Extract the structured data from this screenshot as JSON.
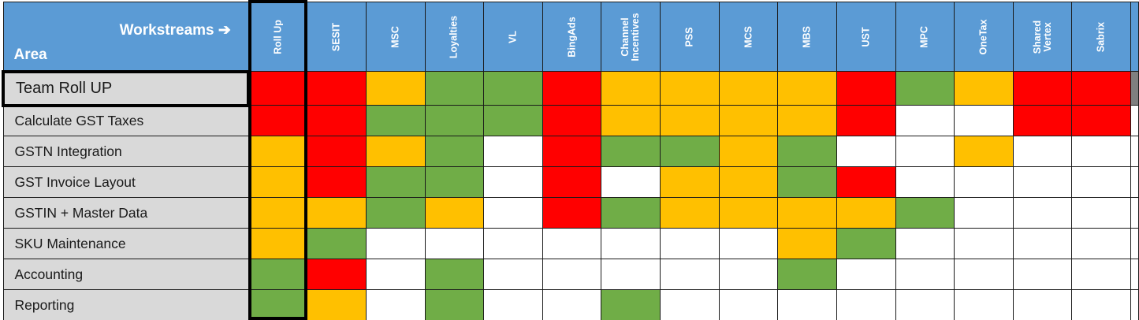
{
  "header": {
    "workstreams_label": "Workstreams",
    "arrow_glyph": "➔",
    "area_label": "Area"
  },
  "columns": [
    "Roll Up",
    "SESIT",
    "MSC",
    "Loyalties",
    "VL",
    "BingAds",
    "Channel\nIncentives",
    "PSS",
    "MCS",
    "MBS",
    "UST",
    "MPC",
    "OneTax",
    "Shared\nVertex",
    "Sabrix"
  ],
  "status_colors": {
    "red": "#ff0000",
    "amber": "#ffc000",
    "green": "#70ad47",
    "none": "#ffffff"
  },
  "rows": [
    {
      "area": "Team Roll UP",
      "statuses": [
        "red",
        "red",
        "amber",
        "green",
        "green",
        "red",
        "amber",
        "amber",
        "amber",
        "amber",
        "red",
        "green",
        "amber",
        "red",
        "red"
      ]
    },
    {
      "area": "Calculate GST Taxes",
      "statuses": [
        "red",
        "red",
        "green",
        "green",
        "green",
        "red",
        "amber",
        "amber",
        "amber",
        "amber",
        "red",
        "none",
        "none",
        "red",
        "red"
      ]
    },
    {
      "area": "GSTN Integration",
      "statuses": [
        "amber",
        "red",
        "amber",
        "green",
        "none",
        "red",
        "green",
        "green",
        "amber",
        "green",
        "none",
        "none",
        "amber",
        "none",
        "none"
      ]
    },
    {
      "area": "GST Invoice Layout",
      "statuses": [
        "amber",
        "red",
        "green",
        "green",
        "none",
        "red",
        "none",
        "amber",
        "amber",
        "green",
        "red",
        "none",
        "none",
        "none",
        "none"
      ]
    },
    {
      "area": "GSTIN + Master Data",
      "statuses": [
        "amber",
        "amber",
        "green",
        "amber",
        "none",
        "red",
        "green",
        "amber",
        "amber",
        "amber",
        "amber",
        "green",
        "none",
        "none",
        "none"
      ]
    },
    {
      "area": "SKU Maintenance",
      "statuses": [
        "amber",
        "green",
        "none",
        "none",
        "none",
        "none",
        "none",
        "none",
        "none",
        "amber",
        "green",
        "none",
        "none",
        "none",
        "none"
      ]
    },
    {
      "area": "Accounting",
      "statuses": [
        "green",
        "red",
        "none",
        "green",
        "none",
        "none",
        "none",
        "none",
        "none",
        "green",
        "none",
        "none",
        "none",
        "none",
        "none"
      ]
    },
    {
      "area": "Reporting",
      "statuses": [
        "green",
        "amber",
        "none",
        "green",
        "none",
        "none",
        "green",
        "none",
        "none",
        "none",
        "none",
        "none",
        "none",
        "none",
        "none"
      ]
    }
  ]
}
